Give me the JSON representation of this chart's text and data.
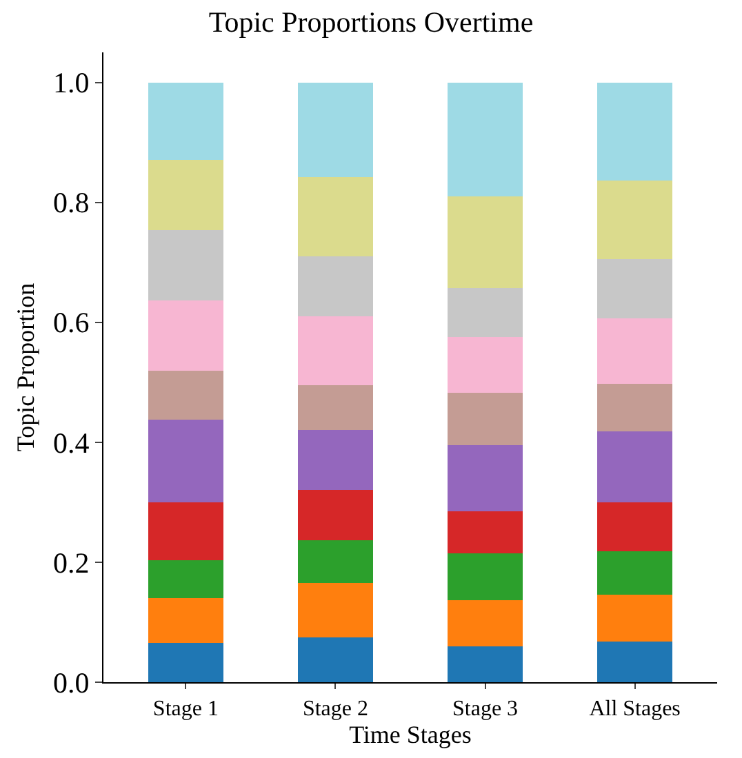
{
  "chart_data": {
    "type": "bar",
    "title": "Topic Proportions Overtime",
    "xlabel": "Time Stages",
    "ylabel": "Topic Proportion",
    "categories": [
      "Stage 1",
      "Stage 2",
      "Stage 3",
      "All Stages"
    ],
    "stacked": true,
    "ylim": [
      0,
      1.05
    ],
    "yticks": [
      {
        "value": 0,
        "label": "0.0"
      },
      {
        "value": 0.2,
        "label": "0.2"
      },
      {
        "value": 0.4,
        "label": "0.4"
      },
      {
        "value": 0.6,
        "label": "0.6"
      },
      {
        "value": 0.8,
        "label": "0.8"
      },
      {
        "value": 1,
        "label": "1.0"
      }
    ],
    "series": [
      {
        "color": "#1f77b4",
        "values": [
          0.065,
          0.075,
          0.06,
          0.068
        ]
      },
      {
        "color": "#ff7f0e",
        "values": [
          0.075,
          0.09,
          0.077,
          0.078
        ]
      },
      {
        "color": "#2ca02c",
        "values": [
          0.063,
          0.072,
          0.078,
          0.072
        ]
      },
      {
        "color": "#d62728",
        "values": [
          0.097,
          0.083,
          0.07,
          0.082
        ]
      },
      {
        "color": "#9467bd",
        "values": [
          0.138,
          0.1,
          0.11,
          0.118
        ]
      },
      {
        "color": "#c49c94",
        "values": [
          0.081,
          0.075,
          0.088,
          0.079
        ]
      },
      {
        "color": "#f7b6d2",
        "values": [
          0.118,
          0.115,
          0.092,
          0.11
        ]
      },
      {
        "color": "#c7c7c7",
        "values": [
          0.117,
          0.1,
          0.082,
          0.098
        ]
      },
      {
        "color": "#dbdb8d",
        "values": [
          0.117,
          0.132,
          0.153,
          0.131
        ]
      },
      {
        "color": "#9edae5",
        "values": [
          0.129,
          0.158,
          0.19,
          0.164
        ]
      }
    ]
  }
}
